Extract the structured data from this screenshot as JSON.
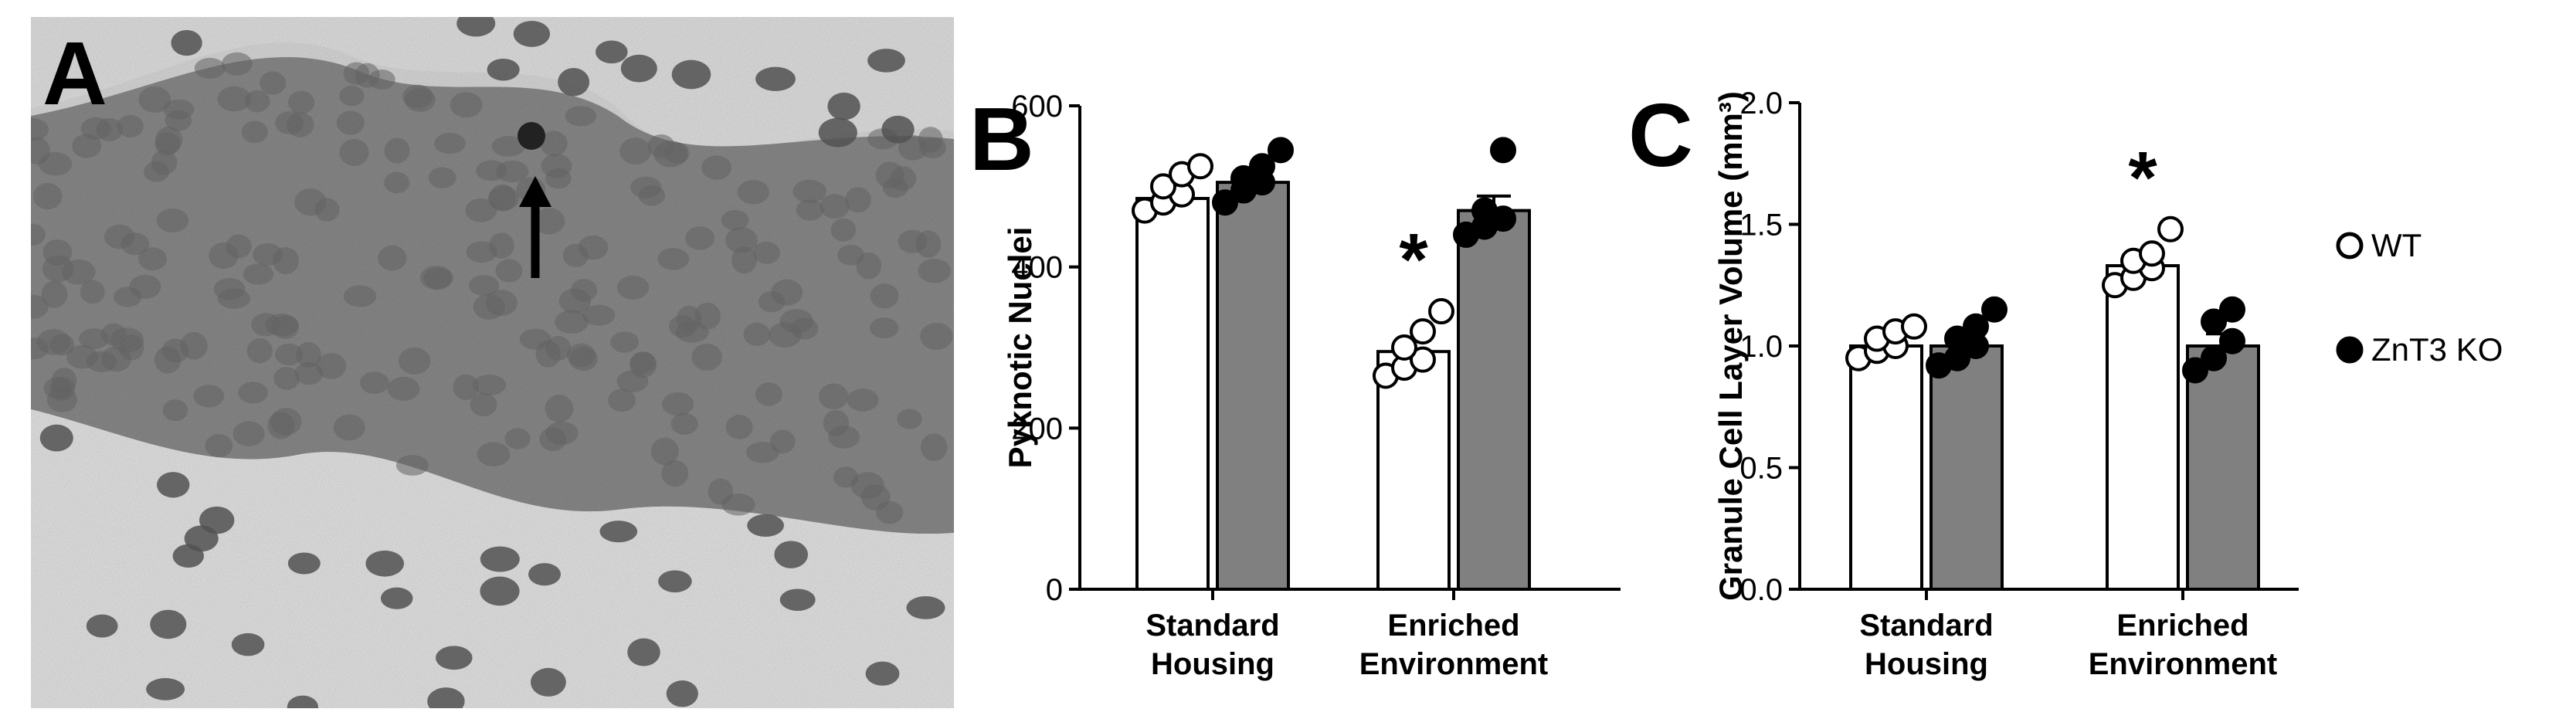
{
  "panels": {
    "a": {
      "letter": "A"
    },
    "b": {
      "letter": "B"
    },
    "c": {
      "letter": "C"
    }
  },
  "colors": {
    "wt_bar": "#ffffff",
    "ko_bar": "#808080",
    "axis": "#000000",
    "tissue": "#9a9a9a",
    "nuclei": "#3c3c3c"
  },
  "micrograph": {
    "description_icon": "arrow-icon"
  },
  "legend": {
    "items": [
      {
        "label": "WT",
        "marker": "open-circle"
      },
      {
        "label": "ZnT3 KO",
        "marker": "filled-circle"
      }
    ]
  },
  "chart_data": [
    {
      "panel": "B",
      "type": "bar",
      "ylabel": "Pyknotic Nuclei",
      "xlabel": "",
      "ylim": [
        0,
        600
      ],
      "yticks": [
        0,
        200,
        400,
        600
      ],
      "categories": [
        [
          "Standard",
          "Housing"
        ],
        [
          "Enriched",
          "Environment"
        ]
      ],
      "series": [
        {
          "name": "WT",
          "values": [
            485,
            295
          ],
          "errors": [
            12,
            15
          ],
          "points": [
            [
              470,
              480,
              490,
              500,
              515,
              525
            ],
            [
              265,
              275,
              285,
              300,
              320,
              345
            ]
          ]
        },
        {
          "name": "ZnT3 KO",
          "values": [
            505,
            470
          ],
          "errors": [
            12,
            18
          ],
          "points": [
            [
              480,
              495,
              505,
              510,
              525,
              545
            ],
            [
              440,
              450,
              460,
              470,
              545
            ]
          ]
        }
      ],
      "annotations": [
        {
          "text": "*",
          "category": 1,
          "series": 0
        }
      ]
    },
    {
      "panel": "C",
      "type": "bar",
      "ylabel": "Granule Cell Layer Volume (mm³)",
      "xlabel": "",
      "ylim": [
        0,
        2.0
      ],
      "yticks": [
        "0.0",
        "0.5",
        "1.0",
        "1.5",
        "2.0"
      ],
      "categories": [
        [
          "Standard",
          "Housing"
        ],
        [
          "Enriched",
          "Environment"
        ]
      ],
      "series": [
        {
          "name": "WT",
          "values": [
            1.0,
            1.33
          ],
          "errors": [
            0.03,
            0.04
          ],
          "points": [
            [
              0.95,
              0.98,
              1.0,
              1.03,
              1.06,
              1.08
            ],
            [
              1.25,
              1.28,
              1.32,
              1.35,
              1.38,
              1.48
            ]
          ]
        },
        {
          "name": "ZnT3 KO",
          "values": [
            1.0,
            1.0
          ],
          "errors": [
            0.04,
            0.05
          ],
          "points": [
            [
              0.92,
              0.95,
              1.0,
              1.03,
              1.08,
              1.15
            ],
            [
              0.9,
              0.95,
              1.02,
              1.1,
              1.15
            ]
          ]
        }
      ],
      "annotations": [
        {
          "text": "*",
          "category": 1,
          "series": 0
        }
      ]
    }
  ]
}
